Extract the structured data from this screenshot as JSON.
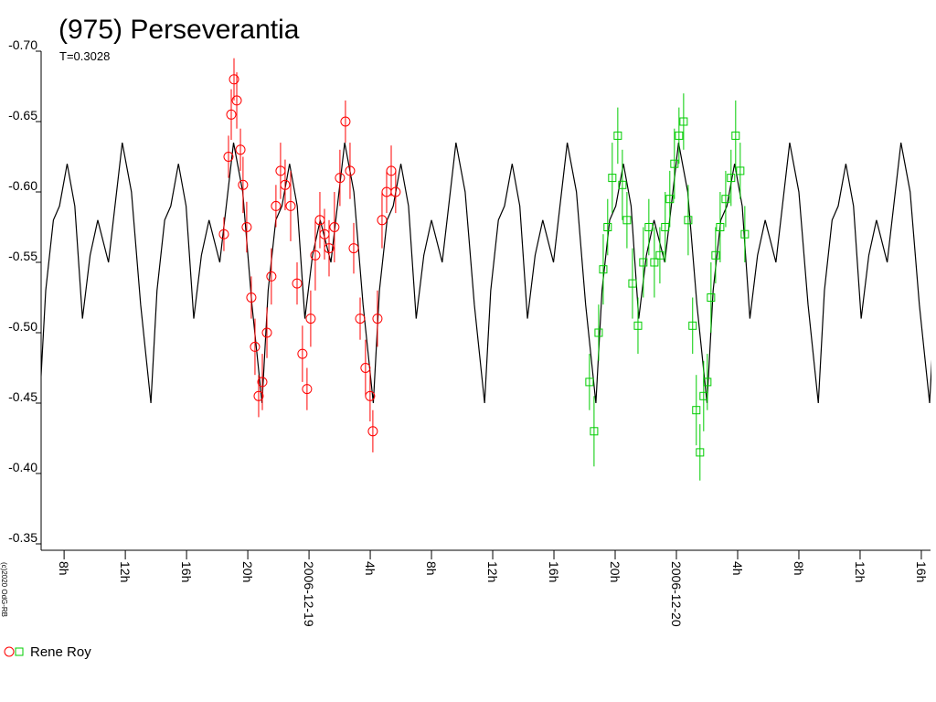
{
  "chart_data": {
    "type": "scatter",
    "title": "(975) Perseverantia",
    "subtitle": "T=0.3028",
    "credit": "(c)2020 OdG-RB",
    "observer": "Rene Roy",
    "xlim": [
      -17.5,
      40.6
    ],
    "ylim": [
      -0.7,
      -0.35
    ],
    "y_inverted": true,
    "xticks": [
      {
        "value": -16,
        "label": "8h"
      },
      {
        "value": -12,
        "label": "12h"
      },
      {
        "value": -8,
        "label": "16h"
      },
      {
        "value": -4,
        "label": "20h"
      },
      {
        "value": 0,
        "label": "2006-12-19"
      },
      {
        "value": 4,
        "label": "4h"
      },
      {
        "value": 8,
        "label": "8h"
      },
      {
        "value": 12,
        "label": "12h"
      },
      {
        "value": 16,
        "label": "16h"
      },
      {
        "value": 20,
        "label": "20h"
      },
      {
        "value": 24,
        "label": "2006-12-20"
      },
      {
        "value": 28,
        "label": "4h"
      },
      {
        "value": 32,
        "label": "8h"
      },
      {
        "value": 36,
        "label": "12h"
      },
      {
        "value": 40,
        "label": "16h"
      }
    ],
    "yticks": [
      {
        "value": -0.7,
        "label": "-0.70"
      },
      {
        "value": -0.65,
        "label": "-0.65"
      },
      {
        "value": -0.6,
        "label": "-0.60"
      },
      {
        "value": -0.55,
        "label": "-0.55"
      },
      {
        "value": -0.5,
        "label": "-0.50"
      },
      {
        "value": -0.45,
        "label": "-0.45"
      },
      {
        "value": -0.4,
        "label": "-0.40"
      },
      {
        "value": -0.35,
        "label": "-0.35"
      }
    ],
    "series": [
      {
        "style": "line",
        "color": "#000000",
        "x": [
          -17.6,
          -17.2,
          -16.7,
          -16.3,
          -15.8,
          -15.3,
          -14.8,
          -14.3,
          -13.8,
          -13.1,
          -12.2,
          -11.6,
          -11.0,
          -10.33,
          -9.93,
          -9.43,
          -9.03,
          -8.53,
          -8.03,
          -7.53,
          -7.03,
          -6.53,
          -5.83,
          -4.93,
          -4.33,
          -3.73,
          -3.07,
          -2.67,
          -2.17,
          -1.77,
          -1.27,
          -0.77,
          -0.27,
          0.23,
          0.73,
          1.43,
          2.33,
          2.93,
          3.53,
          4.2,
          4.6,
          5.1,
          5.5,
          6.0,
          6.5,
          7.0,
          7.5,
          8.0,
          8.7,
          9.6,
          10.2,
          10.8,
          11.47,
          11.87,
          12.37,
          12.77,
          13.27,
          13.77,
          14.27,
          14.77,
          15.27,
          15.97,
          16.87,
          17.47,
          18.07,
          18.74,
          19.14,
          19.64,
          20.04,
          20.54,
          21.04,
          21.54,
          22.04,
          22.54,
          23.24,
          24.14,
          24.74,
          25.34,
          26.0,
          26.4,
          26.9,
          27.3,
          27.8,
          28.3,
          28.8,
          29.3,
          29.8,
          30.5,
          31.4,
          32.0,
          32.6,
          33.27,
          33.67,
          34.17,
          34.57,
          35.07,
          35.57,
          36.07,
          36.57,
          37.07,
          37.77,
          38.67,
          39.27,
          39.87,
          40.54,
          40.94
        ],
        "values": [
          -0.45,
          -0.53,
          -0.58,
          -0.59,
          -0.62,
          -0.59,
          -0.51,
          -0.555,
          -0.58,
          -0.55,
          -0.635,
          -0.6,
          -0.52,
          -0.45,
          -0.53,
          -0.58,
          -0.59,
          -0.62,
          -0.59,
          -0.51,
          -0.555,
          -0.58,
          -0.55,
          -0.635,
          -0.6,
          -0.52,
          -0.45,
          -0.53,
          -0.58,
          -0.59,
          -0.62,
          -0.59,
          -0.51,
          -0.555,
          -0.58,
          -0.55,
          -0.635,
          -0.6,
          -0.52,
          -0.45,
          -0.53,
          -0.58,
          -0.59,
          -0.62,
          -0.59,
          -0.51,
          -0.555,
          -0.58,
          -0.55,
          -0.635,
          -0.6,
          -0.52,
          -0.45,
          -0.53,
          -0.58,
          -0.59,
          -0.62,
          -0.59,
          -0.51,
          -0.555,
          -0.58,
          -0.55,
          -0.635,
          -0.6,
          -0.52,
          -0.45,
          -0.53,
          -0.58,
          -0.59,
          -0.62,
          -0.59,
          -0.51,
          -0.555,
          -0.58,
          -0.55,
          -0.635,
          -0.6,
          -0.52,
          -0.45,
          -0.53,
          -0.58,
          -0.59,
          -0.62,
          -0.59,
          -0.51,
          -0.555,
          -0.58,
          -0.55,
          -0.635,
          -0.6,
          -0.52,
          -0.45,
          -0.53,
          -0.58,
          -0.59,
          -0.62,
          -0.59,
          -0.51,
          -0.555,
          -0.58,
          -0.55,
          -0.635,
          -0.6,
          -0.52,
          -0.45,
          -0.53
        ]
      },
      {
        "style": "marker",
        "marker": "circle",
        "color": "#ff0000",
        "x": [
          -5.56,
          -5.26,
          -5.08,
          -4.9,
          -4.72,
          -4.48,
          -4.31,
          -4.07,
          -3.77,
          -3.53,
          -3.29,
          -3.05,
          -2.75,
          -2.46,
          -2.16,
          -1.86,
          -1.56,
          -1.2,
          -0.78,
          -0.43,
          -0.13,
          0.11,
          0.41,
          0.71,
          1.01,
          1.31,
          1.66,
          2.02,
          2.38,
          2.68,
          2.92,
          3.34,
          3.69,
          3.99,
          4.17,
          4.47,
          4.77,
          5.07,
          5.37,
          5.66
        ],
        "values": [
          -0.57,
          -0.625,
          -0.655,
          -0.68,
          -0.665,
          -0.63,
          -0.605,
          -0.575,
          -0.525,
          -0.49,
          -0.455,
          -0.465,
          -0.5,
          -0.54,
          -0.59,
          -0.615,
          -0.605,
          -0.59,
          -0.535,
          -0.485,
          -0.46,
          -0.51,
          -0.555,
          -0.58,
          -0.57,
          -0.56,
          -0.575,
          -0.61,
          -0.65,
          -0.615,
          -0.56,
          -0.51,
          -0.475,
          -0.455,
          -0.43,
          -0.51,
          -0.58,
          -0.6,
          -0.615,
          -0.6
        ],
        "errors": [
          0.012,
          0.015,
          0.018,
          0.015,
          0.02,
          0.015,
          0.02,
          0.018,
          0.015,
          0.02,
          0.015,
          0.02,
          0.018,
          0.02,
          0.015,
          0.02,
          0.018,
          0.025,
          0.015,
          0.02,
          0.015,
          0.02,
          0.025,
          0.02,
          0.018,
          0.02,
          0.025,
          0.02,
          0.015,
          0.02,
          0.018,
          0.015,
          0.02,
          0.018,
          0.015,
          0.02,
          0.02,
          0.015,
          0.018,
          0.015
        ]
      },
      {
        "style": "marker",
        "marker": "square",
        "color": "#00cc00",
        "x": [
          18.32,
          18.62,
          18.92,
          19.22,
          19.51,
          19.81,
          20.17,
          20.47,
          20.77,
          21.13,
          21.49,
          21.84,
          22.2,
          22.56,
          22.92,
          23.27,
          23.57,
          23.87,
          24.17,
          24.47,
          24.77,
          25.06,
          25.3,
          25.54,
          25.78,
          26.02,
          26.26,
          26.56,
          26.86,
          27.22,
          27.57,
          27.87,
          28.17,
          28.47
        ],
        "values": [
          -0.465,
          -0.43,
          -0.5,
          -0.545,
          -0.575,
          -0.61,
          -0.64,
          -0.605,
          -0.58,
          -0.535,
          -0.505,
          -0.55,
          -0.575,
          -0.55,
          -0.555,
          -0.575,
          -0.595,
          -0.62,
          -0.64,
          -0.65,
          -0.58,
          -0.505,
          -0.445,
          -0.415,
          -0.455,
          -0.465,
          -0.525,
          -0.555,
          -0.575,
          -0.595,
          -0.61,
          -0.64,
          -0.615,
          -0.57
        ],
        "errors": [
          0.02,
          0.025,
          0.02,
          0.025,
          0.02,
          0.025,
          0.02,
          0.025,
          0.02,
          0.025,
          0.02,
          0.025,
          0.02,
          0.025,
          0.02,
          0.025,
          0.02,
          0.025,
          0.02,
          0.02,
          0.025,
          0.02,
          0.025,
          0.02,
          0.025,
          0.02,
          0.025,
          0.02,
          0.025,
          0.02,
          0.02,
          0.025,
          0.02,
          0.02
        ]
      }
    ]
  }
}
